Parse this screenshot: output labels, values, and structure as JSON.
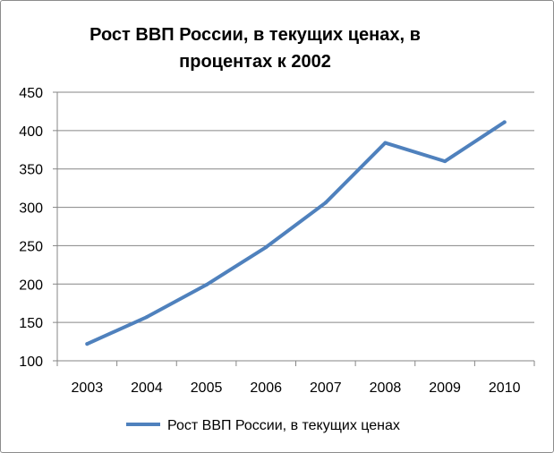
{
  "colors": {
    "series": "#4f81bd",
    "grid": "#868686",
    "axis": "#868686",
    "text": "#000000"
  },
  "chart_data": {
    "type": "line",
    "title_lines": [
      "Рост ВВП России, в текущих ценах, в",
      "процентах к 2002"
    ],
    "categories": [
      "2003",
      "2004",
      "2005",
      "2006",
      "2007",
      "2008",
      "2009",
      "2010"
    ],
    "series": [
      {
        "name": "Рост ВВП России, в текущих ценах",
        "values": [
          122,
          157,
          199,
          248,
          306,
          384,
          360,
          411
        ]
      }
    ],
    "ylim": [
      100,
      450
    ],
    "yticks": [
      100,
      150,
      200,
      250,
      300,
      350,
      400,
      450
    ],
    "grid": true,
    "legend": "bottom"
  }
}
